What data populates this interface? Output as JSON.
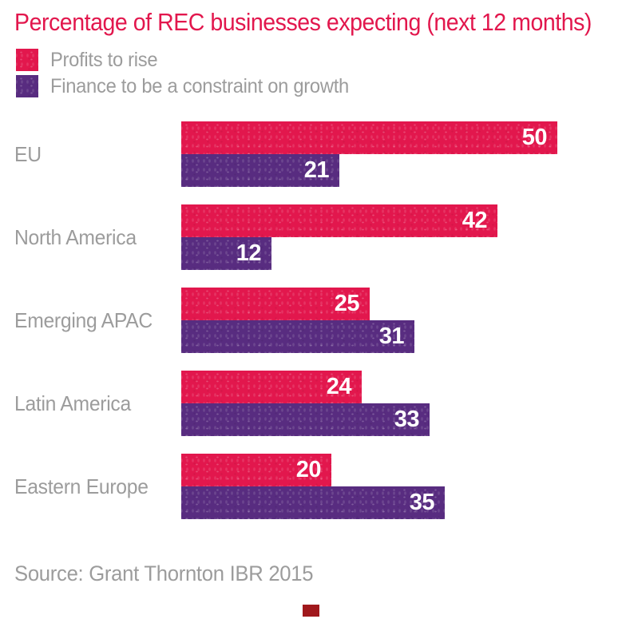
{
  "title": {
    "text": "Percentage of REC businesses expecting (next 12 months)",
    "color": "#e2174d"
  },
  "legend": {
    "items": [
      {
        "label": "Profits to rise",
        "color": "#e2174d"
      },
      {
        "label": "Finance to be a constraint on growth",
        "color": "#582c80"
      }
    ]
  },
  "chart_data": {
    "type": "bar",
    "orientation": "horizontal",
    "title": "Percentage of REC businesses expecting (next 12 months)",
    "categories": [
      "EU",
      "North America",
      "Emerging APAC",
      "Latin America",
      "Eastern Europe"
    ],
    "series": [
      {
        "name": "Profits to rise",
        "color": "#e2174d",
        "values": [
          50,
          42,
          25,
          24,
          20
        ]
      },
      {
        "name": "Finance to be a constraint on growth",
        "color": "#582c80",
        "values": [
          21,
          12,
          31,
          33,
          35
        ]
      }
    ],
    "value_labels": "inside-end, white, bold",
    "xlabel": "",
    "ylabel": "",
    "xlim": [
      0,
      55
    ],
    "grid": false,
    "axes_visible": false,
    "legend_position": "top-left"
  },
  "source": {
    "text": "Source: Grant Thornton IBR 2015"
  },
  "colors": {
    "series_pink": "#e2174d",
    "series_purple": "#582c80",
    "label_gray": "#9c9c9c",
    "value_text": "#ffffff",
    "background": "#ffffff",
    "bottom_mark_red": "#a0181c"
  }
}
